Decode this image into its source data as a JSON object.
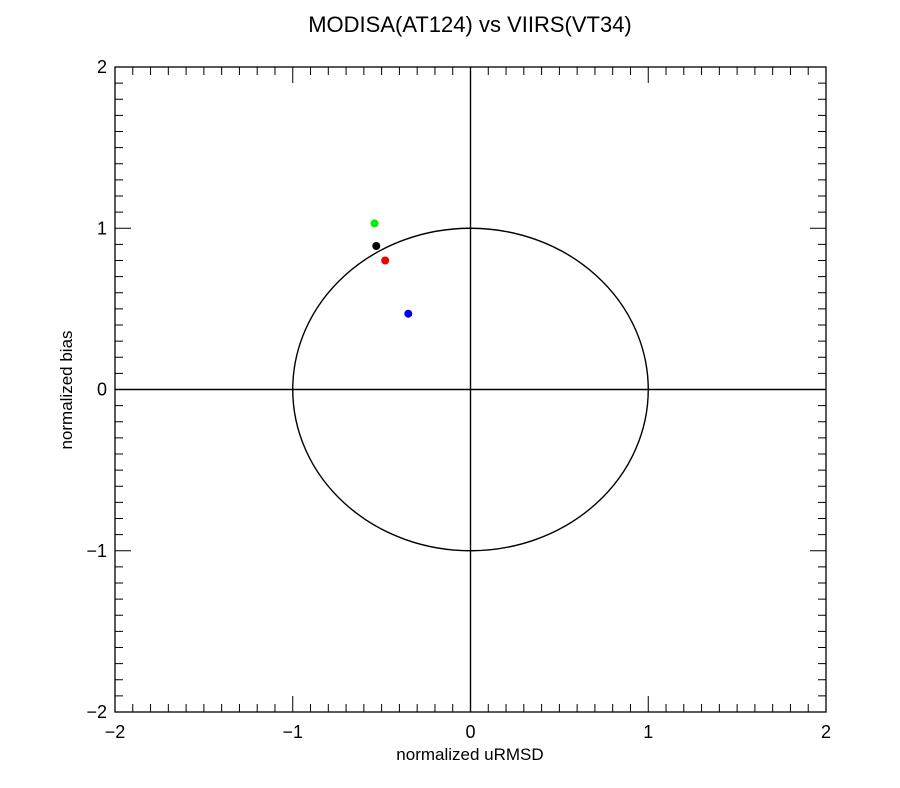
{
  "chart_data": {
    "type": "scatter",
    "title": "MODISA(AT124) vs VIIRS(VT34)",
    "xlabel": "normalized uRMSD",
    "ylabel": "normalized bias",
    "xlim": [
      -2,
      2
    ],
    "ylim": [
      -2,
      2
    ],
    "xticks": [
      -2,
      -1,
      0,
      1,
      2
    ],
    "yticks": [
      -2,
      -1,
      0,
      1,
      2
    ],
    "xtick_labels": [
      "−2",
      "−1",
      "0",
      "1",
      "2"
    ],
    "ytick_labels": [
      "−2",
      "−1",
      "0",
      "1",
      "2"
    ],
    "grid": false,
    "reference_circle_radius": 1,
    "points": [
      {
        "x": -0.54,
        "y": 1.03,
        "color": "#00ee00"
      },
      {
        "x": -0.53,
        "y": 0.89,
        "color": "#000000"
      },
      {
        "x": -0.48,
        "y": 0.8,
        "color": "#ee0000"
      },
      {
        "x": -0.35,
        "y": 0.47,
        "color": "#0000ee"
      }
    ]
  }
}
